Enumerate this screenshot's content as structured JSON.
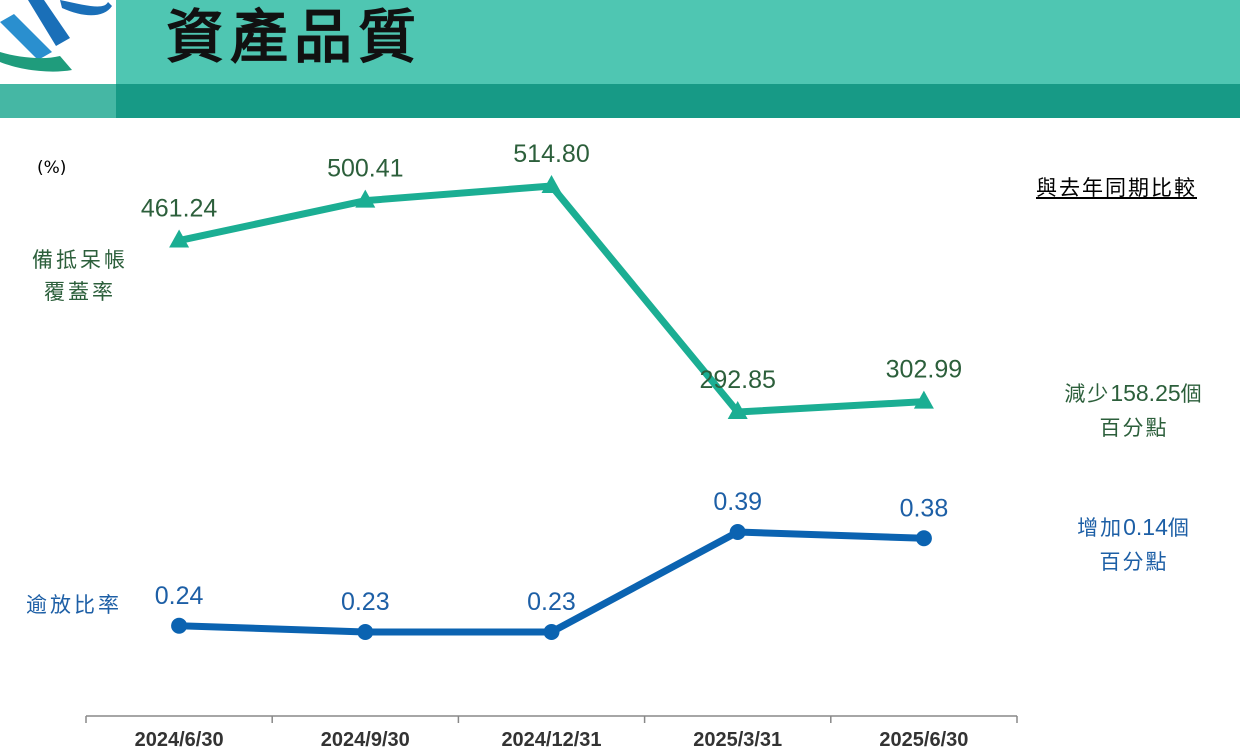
{
  "header": {
    "title": "資產品質"
  },
  "chart_data": {
    "type": "line",
    "unit_label": "(%)",
    "categories": [
      "2024/6/30",
      "2024/9/30",
      "2024/12/31",
      "2025/3/31",
      "2025/6/30"
    ],
    "series": [
      {
        "name": "備抵呆帳覆蓋率",
        "name_lines": [
          "備抵呆帳",
          "覆蓋率"
        ],
        "marker": "triangle",
        "color": "#1bae93",
        "label_color": "#2c5f3b",
        "values": [
          461.24,
          500.41,
          514.8,
          292.85,
          302.99
        ],
        "labels": [
          "461.24",
          "500.41",
          "514.80",
          "292.85",
          "302.99"
        ]
      },
      {
        "name": "逾放比率",
        "name_lines": [
          "逾放比率"
        ],
        "marker": "circle",
        "color": "#0b63b1",
        "label_color": "#1d5fa6",
        "values": [
          0.24,
          0.23,
          0.23,
          0.39,
          0.38
        ],
        "labels": [
          "0.24",
          "0.23",
          "0.23",
          "0.39",
          "0.38"
        ]
      }
    ]
  },
  "comparison": {
    "title": "與去年同期比較",
    "coverage_change": {
      "prefix": "減少",
      "value": "158.25",
      "suffix": "個",
      "line2": "百分點"
    },
    "npl_change": {
      "prefix": "增加",
      "value": "0.14",
      "suffix": "個",
      "line2": "百分點"
    }
  }
}
